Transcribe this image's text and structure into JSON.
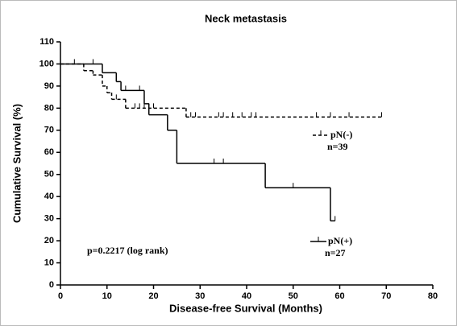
{
  "chart_data": {
    "type": "survival",
    "title": "Neck metastasis",
    "x_label": "Disease-free Survival (Months)",
    "y_label": "Cumulative Survival (%)",
    "annotation": "p=0.2217 (log rank)",
    "xlim": [
      0,
      80
    ],
    "xticks": [
      0,
      10,
      20,
      30,
      40,
      50,
      60,
      70,
      80
    ],
    "ylim": [
      0,
      110
    ],
    "yticks": [
      0,
      10,
      20,
      30,
      40,
      50,
      60,
      70,
      80,
      90,
      100,
      110
    ],
    "series": [
      {
        "name": "pN(-)",
        "n_label": "n=39",
        "dash": true,
        "color": "#000000",
        "x": [
          0,
          5,
          7,
          9,
          10,
          11,
          14,
          27,
          69
        ],
        "values": [
          100,
          97,
          95,
          90,
          87,
          84,
          80,
          76,
          76
        ],
        "censor_x": [
          3,
          12,
          16,
          17,
          18,
          19,
          20,
          28,
          29,
          34,
          35,
          37,
          39,
          41,
          42,
          55,
          58,
          62,
          69
        ],
        "censor_values": [
          100,
          84,
          80,
          80,
          80,
          80,
          80,
          76,
          76,
          76,
          76,
          76,
          76,
          76,
          76,
          76,
          76,
          76,
          76
        ]
      },
      {
        "name": "pN(+)",
        "n_label": "n=27",
        "dash": false,
        "color": "#000000",
        "x": [
          0,
          9,
          12,
          13,
          18,
          19,
          23,
          25,
          44,
          58,
          59
        ],
        "values": [
          100,
          96,
          92,
          88,
          82,
          77,
          70,
          55,
          44,
          29,
          29
        ],
        "censor_x": [
          7,
          14,
          17,
          33,
          35,
          50,
          59
        ],
        "censor_values": [
          100,
          88,
          88,
          55,
          55,
          44,
          29
        ]
      }
    ]
  }
}
